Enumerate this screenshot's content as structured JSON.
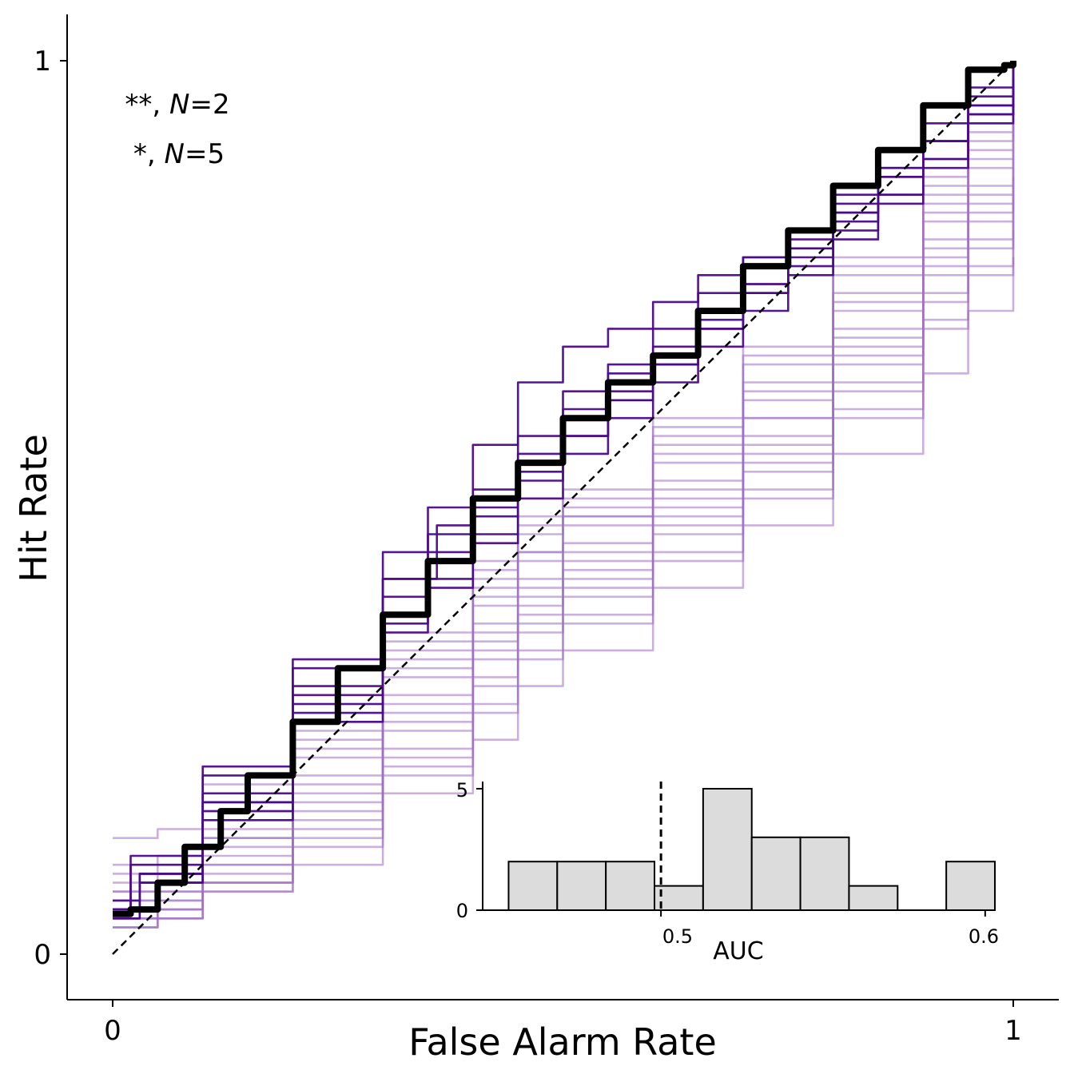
{
  "chart_data": [
    {
      "type": "line",
      "xlabel": "False Alarm Rate",
      "ylabel": "Hit Rate",
      "xlim": [
        -0.05,
        1.05
      ],
      "ylim": [
        -0.05,
        1.05
      ],
      "xticks": [
        0,
        1
      ],
      "yticks": [
        0,
        1
      ],
      "xtick_labels": [
        "0",
        "1"
      ],
      "ytick_labels": [
        "0",
        "1"
      ],
      "annotations": [
        {
          "stars": "**, ",
          "var": "N",
          "rest": "=2"
        },
        {
          "stars": "*, ",
          "var": "N",
          "rest": "=5"
        }
      ],
      "colors": {
        "significant": "#4b0a8c",
        "nonsignificant": "#a070c4",
        "mean": "#000000"
      },
      "chance_line": {
        "x": [
          0,
          1
        ],
        "y": [
          0,
          1
        ],
        "style": "dashed"
      },
      "mean_curve": {
        "x": [
          0.0,
          0.02,
          0.05,
          0.08,
          0.12,
          0.15,
          0.2,
          0.25,
          0.3,
          0.35,
          0.4,
          0.45,
          0.5,
          0.55,
          0.6,
          0.65,
          0.7,
          0.75,
          0.8,
          0.85,
          0.9,
          0.95,
          0.99,
          1.0
        ],
        "y": [
          0.045,
          0.05,
          0.08,
          0.12,
          0.16,
          0.2,
          0.26,
          0.32,
          0.38,
          0.44,
          0.51,
          0.55,
          0.6,
          0.64,
          0.67,
          0.72,
          0.77,
          0.81,
          0.86,
          0.9,
          0.95,
          0.99,
          0.995,
          1.0
        ]
      },
      "series": [
        {
          "significant": true,
          "x": [
            0,
            0.02,
            0.1,
            0.2,
            0.3,
            0.35,
            0.4,
            0.45,
            0.5,
            0.55,
            0.6,
            0.65,
            0.7,
            0.75,
            0.8,
            0.85,
            0.9,
            0.95,
            1.0
          ],
          "y": [
            0.05,
            0.1,
            0.2,
            0.33,
            0.45,
            0.5,
            0.57,
            0.64,
            0.68,
            0.7,
            0.73,
            0.76,
            0.78,
            0.8,
            0.84,
            0.88,
            0.93,
            0.97,
            1.0
          ]
        },
        {
          "significant": true,
          "x": [
            0,
            0.02,
            0.1,
            0.2,
            0.3,
            0.36,
            0.4,
            0.45,
            0.5,
            0.55,
            0.6,
            0.65,
            0.7,
            0.75,
            0.8,
            0.85,
            0.9,
            0.95,
            1.0
          ],
          "y": [
            0.05,
            0.11,
            0.21,
            0.32,
            0.42,
            0.48,
            0.52,
            0.58,
            0.63,
            0.66,
            0.7,
            0.74,
            0.78,
            0.81,
            0.85,
            0.88,
            0.91,
            0.95,
            1.0
          ]
        },
        {
          "significant": true,
          "x": [
            0,
            0.03,
            0.1,
            0.2,
            0.3,
            0.35,
            0.4,
            0.45,
            0.5,
            0.55,
            0.6,
            0.65,
            0.7,
            0.75,
            0.8,
            0.85,
            0.9,
            0.95,
            1.0
          ],
          "y": [
            0.04,
            0.09,
            0.18,
            0.3,
            0.42,
            0.47,
            0.51,
            0.56,
            0.61,
            0.65,
            0.68,
            0.72,
            0.75,
            0.79,
            0.83,
            0.87,
            0.91,
            0.96,
            1.0
          ]
        },
        {
          "significant": true,
          "x": [
            0,
            0.03,
            0.1,
            0.2,
            0.3,
            0.35,
            0.4,
            0.45,
            0.5,
            0.55,
            0.6,
            0.65,
            0.7,
            0.75,
            0.8,
            0.85,
            0.9,
            0.95,
            1.0
          ],
          "y": [
            0.04,
            0.08,
            0.17,
            0.28,
            0.38,
            0.44,
            0.5,
            0.55,
            0.6,
            0.63,
            0.67,
            0.71,
            0.75,
            0.79,
            0.83,
            0.87,
            0.91,
            0.95,
            0.98
          ]
        },
        {
          "significant": true,
          "x": [
            0,
            0.03,
            0.1,
            0.2,
            0.3,
            0.35,
            0.4,
            0.45,
            0.5,
            0.55,
            0.6,
            0.65,
            0.7,
            0.75,
            0.8,
            0.85,
            0.9,
            0.95,
            1.0
          ],
          "y": [
            0.06,
            0.09,
            0.17,
            0.29,
            0.4,
            0.45,
            0.49,
            0.54,
            0.58,
            0.62,
            0.66,
            0.7,
            0.74,
            0.78,
            0.82,
            0.85,
            0.89,
            0.94,
            0.97
          ]
        },
        {
          "significant": true,
          "x": [
            0,
            0.03,
            0.1,
            0.2,
            0.3,
            0.35,
            0.4,
            0.45,
            0.5,
            0.55,
            0.6,
            0.65,
            0.7,
            0.75,
            0.8,
            0.85,
            0.9,
            0.95,
            1.0
          ],
          "y": [
            0.05,
            0.09,
            0.16,
            0.27,
            0.37,
            0.42,
            0.47,
            0.53,
            0.58,
            0.62,
            0.66,
            0.7,
            0.74,
            0.77,
            0.81,
            0.85,
            0.89,
            0.94,
            0.98
          ]
        },
        {
          "significant": true,
          "x": [
            0,
            0.03,
            0.1,
            0.2,
            0.3,
            0.35,
            0.4,
            0.45,
            0.5,
            0.55,
            0.6,
            0.65,
            0.7,
            0.75,
            0.8,
            0.85,
            0.9,
            0.95,
            1.0
          ],
          "y": [
            0.05,
            0.08,
            0.15,
            0.26,
            0.36,
            0.41,
            0.46,
            0.51,
            0.56,
            0.6,
            0.64,
            0.68,
            0.72,
            0.76,
            0.8,
            0.84,
            0.88,
            0.93,
            0.97
          ]
        },
        {
          "significant": false,
          "x": [
            0,
            0.05,
            0.1,
            0.2,
            0.3,
            0.4,
            0.45,
            0.5,
            0.6,
            0.7,
            0.8,
            0.9,
            0.95,
            1.0
          ],
          "y": [
            0.13,
            0.14,
            0.19,
            0.28,
            0.36,
            0.44,
            0.49,
            0.52,
            0.6,
            0.68,
            0.78,
            0.87,
            0.93,
            0.96
          ]
        },
        {
          "significant": false,
          "x": [
            0,
            0.05,
            0.1,
            0.2,
            0.3,
            0.4,
            0.45,
            0.5,
            0.6,
            0.7,
            0.8,
            0.9,
            0.95,
            1.0
          ],
          "y": [
            0.1,
            0.11,
            0.16,
            0.26,
            0.34,
            0.42,
            0.47,
            0.5,
            0.58,
            0.66,
            0.76,
            0.85,
            0.91,
            0.95
          ]
        },
        {
          "significant": false,
          "x": [
            0,
            0.05,
            0.1,
            0.2,
            0.3,
            0.4,
            0.45,
            0.5,
            0.6,
            0.7,
            0.8,
            0.9,
            0.95,
            1.0
          ],
          "y": [
            0.08,
            0.09,
            0.14,
            0.24,
            0.33,
            0.41,
            0.45,
            0.49,
            0.57,
            0.64,
            0.74,
            0.84,
            0.9,
            0.94
          ]
        },
        {
          "significant": false,
          "x": [
            0,
            0.05,
            0.1,
            0.2,
            0.3,
            0.4,
            0.45,
            0.5,
            0.6,
            0.7,
            0.8,
            0.9,
            0.95,
            1.0
          ],
          "y": [
            0.07,
            0.08,
            0.13,
            0.22,
            0.31,
            0.39,
            0.44,
            0.48,
            0.55,
            0.62,
            0.72,
            0.82,
            0.88,
            0.92
          ]
        },
        {
          "significant": false,
          "x": [
            0,
            0.05,
            0.1,
            0.2,
            0.3,
            0.4,
            0.45,
            0.5,
            0.6,
            0.7,
            0.8,
            0.9,
            0.95,
            1.0
          ],
          "y": [
            0.06,
            0.07,
            0.12,
            0.2,
            0.29,
            0.37,
            0.42,
            0.46,
            0.53,
            0.6,
            0.7,
            0.8,
            0.86,
            0.9
          ]
        },
        {
          "significant": false,
          "x": [
            0,
            0.05,
            0.1,
            0.2,
            0.3,
            0.4,
            0.45,
            0.5,
            0.6,
            0.7,
            0.8,
            0.9,
            0.95,
            1.0
          ],
          "y": [
            0.05,
            0.06,
            0.1,
            0.18,
            0.27,
            0.35,
            0.4,
            0.44,
            0.51,
            0.58,
            0.68,
            0.78,
            0.84,
            0.88
          ]
        },
        {
          "significant": false,
          "x": [
            0,
            0.05,
            0.1,
            0.2,
            0.3,
            0.4,
            0.45,
            0.5,
            0.6,
            0.7,
            0.8,
            0.9,
            0.95,
            1.0
          ],
          "y": [
            0.04,
            0.05,
            0.09,
            0.16,
            0.25,
            0.33,
            0.38,
            0.42,
            0.49,
            0.56,
            0.66,
            0.76,
            0.82,
            0.86
          ]
        },
        {
          "significant": false,
          "x": [
            0,
            0.05,
            0.1,
            0.2,
            0.3,
            0.4,
            0.45,
            0.5,
            0.6,
            0.7,
            0.8,
            0.9,
            0.95,
            1.0
          ],
          "y": [
            0.03,
            0.04,
            0.08,
            0.14,
            0.22,
            0.3,
            0.36,
            0.4,
            0.47,
            0.54,
            0.63,
            0.73,
            0.79,
            0.84
          ]
        },
        {
          "significant": false,
          "x": [
            0,
            0.05,
            0.1,
            0.2,
            0.3,
            0.4,
            0.45,
            0.5,
            0.6,
            0.7,
            0.8,
            0.9,
            0.95,
            1.0
          ],
          "y": [
            0.03,
            0.04,
            0.07,
            0.12,
            0.2,
            0.27,
            0.33,
            0.37,
            0.44,
            0.51,
            0.6,
            0.7,
            0.76,
            0.81
          ]
        },
        {
          "significant": false,
          "x": [
            0,
            0.05,
            0.1,
            0.2,
            0.3,
            0.4,
            0.45,
            0.5,
            0.6,
            0.7,
            0.8,
            0.9,
            0.95,
            1.0
          ],
          "y": [
            0.03,
            0.04,
            0.07,
            0.1,
            0.18,
            0.24,
            0.3,
            0.34,
            0.41,
            0.48,
            0.56,
            0.65,
            0.72,
            0.78
          ]
        },
        {
          "significant": false,
          "x": [
            0,
            0.05,
            0.1,
            0.2,
            0.3,
            0.4,
            0.45,
            0.5,
            0.6,
            0.7,
            0.8,
            0.9,
            0.95,
            1.0
          ],
          "y": [
            0.09,
            0.1,
            0.15,
            0.25,
            0.35,
            0.43,
            0.48,
            0.51,
            0.59,
            0.67,
            0.77,
            0.86,
            0.92,
            0.96
          ]
        },
        {
          "significant": false,
          "x": [
            0,
            0.05,
            0.1,
            0.2,
            0.3,
            0.4,
            0.45,
            0.5,
            0.6,
            0.7,
            0.8,
            0.9,
            0.95,
            1.0
          ],
          "y": [
            0.06,
            0.07,
            0.11,
            0.19,
            0.28,
            0.36,
            0.41,
            0.45,
            0.52,
            0.6,
            0.69,
            0.79,
            0.85,
            0.89
          ]
        },
        {
          "significant": false,
          "x": [
            0,
            0.05,
            0.1,
            0.2,
            0.3,
            0.4,
            0.45,
            0.5,
            0.6,
            0.7,
            0.8,
            0.9,
            0.95,
            1.0
          ],
          "y": [
            0.05,
            0.06,
            0.1,
            0.17,
            0.26,
            0.34,
            0.39,
            0.43,
            0.5,
            0.57,
            0.67,
            0.77,
            0.83,
            0.87
          ]
        },
        {
          "significant": false,
          "x": [
            0,
            0.05,
            0.1,
            0.2,
            0.3,
            0.4,
            0.45,
            0.5,
            0.6,
            0.7,
            0.8,
            0.9,
            0.95,
            1.0
          ],
          "y": [
            0.04,
            0.05,
            0.08,
            0.15,
            0.23,
            0.31,
            0.37,
            0.41,
            0.48,
            0.55,
            0.64,
            0.74,
            0.8,
            0.85
          ]
        },
        {
          "significant": false,
          "x": [
            0,
            0.05,
            0.1,
            0.2,
            0.3,
            0.4,
            0.45,
            0.5,
            0.6,
            0.7,
            0.8,
            0.9,
            0.95,
            1.0
          ],
          "y": [
            0.04,
            0.05,
            0.08,
            0.13,
            0.21,
            0.28,
            0.34,
            0.38,
            0.45,
            0.52,
            0.61,
            0.71,
            0.77,
            0.82
          ]
        },
        {
          "significant": false,
          "x": [
            0,
            0.05,
            0.1,
            0.2,
            0.3,
            0.4,
            0.45,
            0.5,
            0.6,
            0.7,
            0.8,
            0.9,
            0.95,
            1.0
          ],
          "y": [
            0.07,
            0.08,
            0.13,
            0.23,
            0.32,
            0.4,
            0.45,
            0.49,
            0.56,
            0.63,
            0.73,
            0.83,
            0.89,
            0.93
          ]
        }
      ]
    },
    {
      "type": "bar",
      "xlabel": "AUC",
      "ylabel": "",
      "xlim": [
        0.445,
        0.603
      ],
      "ylim": [
        0,
        5.2
      ],
      "xticks": [
        0.5,
        0.6
      ],
      "xtick_labels": [
        "0.5",
        "0.6"
      ],
      "yticks": [
        0,
        5
      ],
      "ytick_labels": [
        "0",
        "5"
      ],
      "bin_edges": [
        0.453,
        0.468,
        0.483,
        0.498,
        0.513,
        0.528,
        0.543,
        0.558,
        0.573,
        0.588,
        0.603
      ],
      "values": [
        2,
        2,
        2,
        1,
        5,
        3,
        3,
        1,
        0,
        2
      ],
      "reference_line": {
        "x": 0.5,
        "style": "dashed"
      }
    }
  ]
}
